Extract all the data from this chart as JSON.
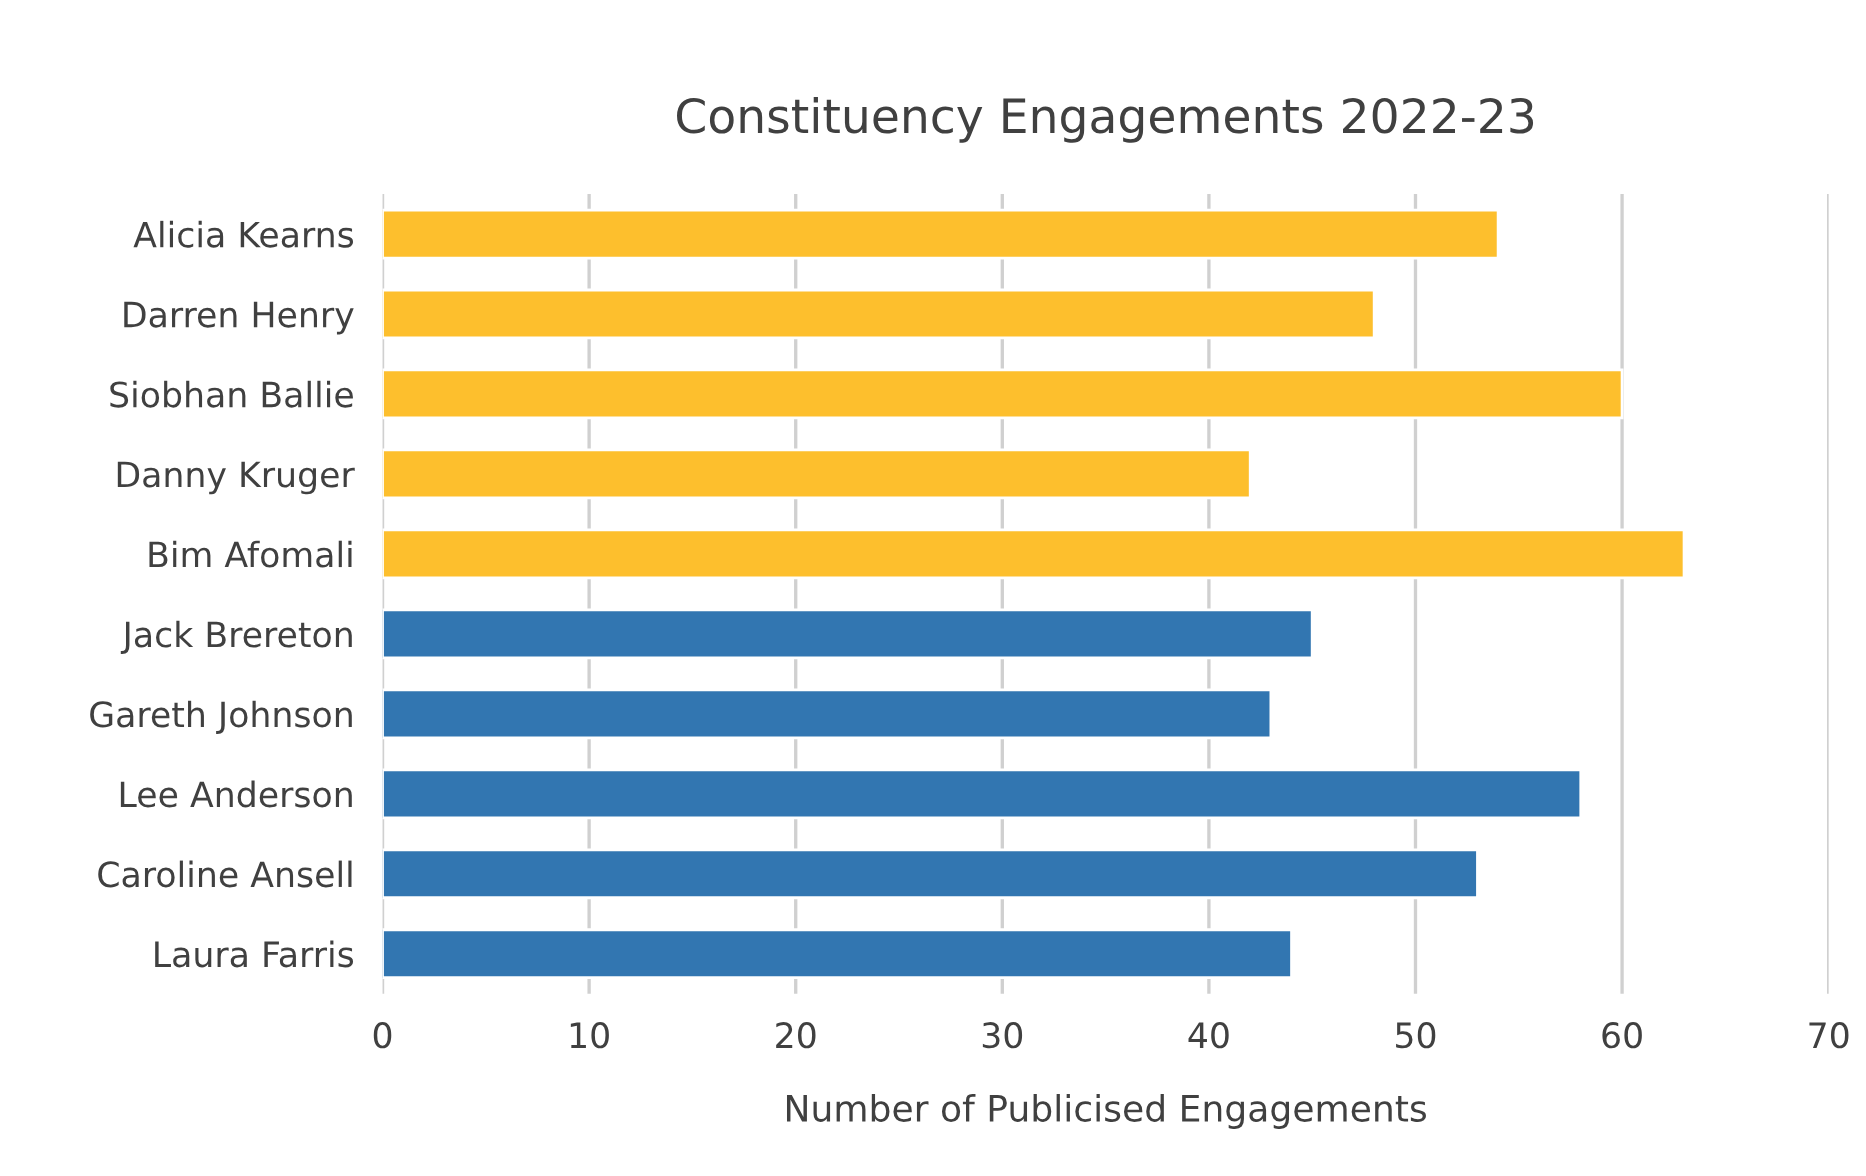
{
  "chart_data": {
    "type": "bar",
    "orientation": "horizontal",
    "title": "Constituency Engagements 2022-23",
    "xlabel": "Number of Publicised Engagements",
    "categories": [
      "Alicia Kearns",
      "Darren Henry",
      "Siobhan Ballie",
      "Danny Kruger",
      "Bim Afomali",
      "Jack Brereton",
      "Gareth Johnson",
      "Lee Anderson",
      "Caroline Ansell",
      "Laura Farris"
    ],
    "values": [
      54,
      48,
      60,
      42,
      63,
      45,
      43,
      58,
      53,
      44
    ],
    "colors": [
      "#fdbf2d",
      "#fdbf2d",
      "#fdbf2d",
      "#fdbf2d",
      "#fdbf2d",
      "#3276b1",
      "#3276b1",
      "#3276b1",
      "#3276b1",
      "#3276b1"
    ],
    "xlim": [
      0,
      70
    ],
    "xticks": [
      0,
      10,
      20,
      30,
      40,
      50,
      60,
      70
    ],
    "grid": "x",
    "legend": false
  }
}
